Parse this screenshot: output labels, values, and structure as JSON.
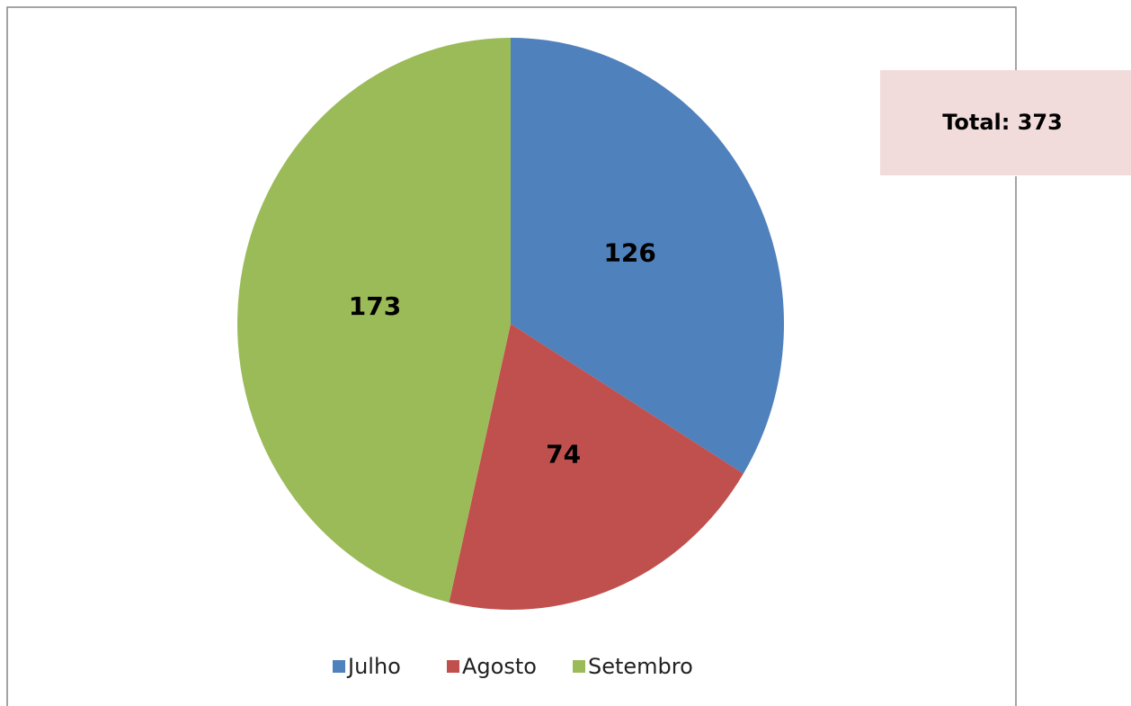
{
  "chart_data": {
    "type": "pie",
    "categories": [
      "Julho",
      "Agosto",
      "Setembro"
    ],
    "values": [
      126,
      74,
      173
    ],
    "colors": [
      "#4f81bd",
      "#c0504d",
      "#9bbb59"
    ],
    "annotation": "Total: 373",
    "legend": "bottom"
  }
}
